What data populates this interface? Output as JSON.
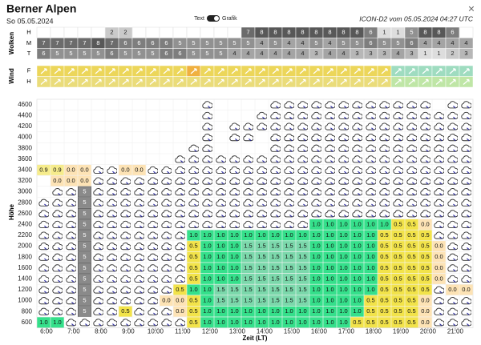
{
  "header": {
    "title": "Berner Alpen",
    "date": "So 05.05.2024",
    "toggle_left": "Text",
    "toggle_right": "Grafik",
    "model": "ICON-D2 vom 05.05.2024 04:27 UTC",
    "close": "×"
  },
  "clouds": {
    "label": "Wolken",
    "rows": [
      {
        "name": "H",
        "values": [
          null,
          null,
          null,
          null,
          null,
          2,
          2,
          null,
          null,
          null,
          null,
          null,
          null,
          null,
          null,
          7,
          8,
          8,
          8,
          8,
          8,
          8,
          8,
          8,
          6,
          1,
          1,
          5,
          8,
          8,
          6,
          null
        ]
      },
      {
        "name": "M",
        "values": [
          7,
          7,
          7,
          7,
          8,
          7,
          6,
          6,
          6,
          6,
          5,
          5,
          5,
          5,
          5,
          5,
          4,
          5,
          4,
          4,
          5,
          4,
          5,
          5,
          6,
          5,
          5,
          6,
          4,
          4,
          4,
          4
        ]
      },
      {
        "name": "T",
        "values": [
          6,
          5,
          5,
          5,
          5,
          6,
          5,
          5,
          5,
          6,
          6,
          5,
          5,
          5,
          4,
          4,
          4,
          4,
          4,
          4,
          3,
          4,
          4,
          3,
          3,
          3,
          4,
          3,
          1,
          1,
          2,
          3
        ]
      }
    ]
  },
  "wind": {
    "label": "Wind",
    "rows": [
      {
        "name": "F"
      },
      {
        "name": "H"
      }
    ]
  },
  "grid": {
    "y_label": "Höhe",
    "x_label": "Zeit (LT)",
    "times": [
      "6:00",
      "7:00",
      "8:00",
      "9:00",
      "10:00",
      "11:00",
      "12:00",
      "13:00",
      "14:00",
      "15:00",
      "16:00",
      "17:00",
      "18:00",
      "19:00",
      "20:00",
      "21:00"
    ],
    "cell_colors": {
      "0.0": "#fde3b5",
      "0.5": "#f2e34a",
      "0.9": "#f6ec8c",
      "1.0": "#35e08b",
      "1.5": "#7bd8ab",
      "5": "#8a8a8a"
    },
    "rows": [
      {
        "altitude": 4600,
        "cells": [
          null,
          null,
          null,
          null,
          null,
          null,
          null,
          null,
          null,
          null,
          null,
          null,
          true,
          null,
          null,
          null,
          null,
          true,
          true,
          true,
          true,
          true,
          true,
          true,
          true,
          true,
          true,
          true,
          true,
          null,
          true,
          true
        ]
      },
      {
        "altitude": 4400,
        "cells": [
          null,
          null,
          null,
          null,
          null,
          null,
          null,
          null,
          null,
          null,
          null,
          null,
          true,
          null,
          null,
          null,
          true,
          true,
          true,
          true,
          true,
          true,
          true,
          true,
          true,
          true,
          true,
          true,
          true,
          true,
          true,
          true
        ]
      },
      {
        "altitude": 4200,
        "cells": [
          null,
          null,
          null,
          null,
          null,
          null,
          null,
          null,
          null,
          null,
          null,
          null,
          true,
          null,
          true,
          true,
          true,
          true,
          true,
          true,
          true,
          true,
          true,
          true,
          true,
          true,
          true,
          true,
          true,
          true,
          true,
          true
        ]
      },
      {
        "altitude": 4000,
        "cells": [
          null,
          null,
          null,
          null,
          null,
          null,
          null,
          null,
          null,
          null,
          null,
          null,
          true,
          null,
          true,
          true,
          null,
          true,
          true,
          true,
          true,
          true,
          true,
          true,
          true,
          true,
          true,
          true,
          true,
          true,
          true,
          true
        ]
      },
      {
        "altitude": 3800,
        "cells": [
          null,
          null,
          null,
          null,
          null,
          null,
          null,
          null,
          null,
          null,
          null,
          true,
          true,
          null,
          null,
          null,
          null,
          true,
          true,
          true,
          true,
          true,
          true,
          true,
          true,
          true,
          true,
          true,
          true,
          true,
          true,
          true
        ]
      },
      {
        "altitude": 3600,
        "cells": [
          null,
          null,
          null,
          null,
          null,
          null,
          null,
          null,
          null,
          null,
          true,
          true,
          true,
          true,
          true,
          true,
          true,
          true,
          true,
          true,
          true,
          true,
          true,
          true,
          true,
          true,
          true,
          true,
          true,
          true,
          true,
          true
        ]
      },
      {
        "altitude": 3400,
        "cells": [
          "0.9",
          "0.9",
          "0.0",
          "0.0",
          true,
          true,
          "0.0",
          "0.0",
          true,
          true,
          true,
          true,
          true,
          true,
          true,
          true,
          true,
          true,
          true,
          true,
          true,
          true,
          true,
          true,
          true,
          true,
          true,
          true,
          true,
          true,
          true,
          true
        ]
      },
      {
        "altitude": 3200,
        "cells": [
          null,
          "0.0",
          "0.0",
          "0.0",
          true,
          true,
          true,
          true,
          true,
          true,
          true,
          true,
          true,
          true,
          true,
          true,
          true,
          true,
          true,
          true,
          true,
          true,
          true,
          true,
          true,
          true,
          true,
          true,
          true,
          true,
          true,
          true
        ]
      },
      {
        "altitude": 3000,
        "cells": [
          null,
          true,
          true,
          "5",
          true,
          true,
          true,
          true,
          true,
          true,
          true,
          true,
          true,
          true,
          true,
          true,
          true,
          true,
          true,
          true,
          true,
          true,
          true,
          true,
          true,
          true,
          true,
          true,
          true,
          true,
          true,
          true
        ]
      },
      {
        "altitude": 2800,
        "cells": [
          true,
          true,
          true,
          "5",
          true,
          true,
          true,
          true,
          true,
          true,
          true,
          true,
          true,
          true,
          true,
          true,
          true,
          true,
          true,
          true,
          true,
          true,
          true,
          true,
          true,
          true,
          true,
          true,
          true,
          true,
          true,
          true
        ]
      },
      {
        "altitude": 2600,
        "cells": [
          true,
          true,
          true,
          "5",
          true,
          true,
          true,
          true,
          true,
          true,
          true,
          true,
          true,
          true,
          true,
          true,
          true,
          true,
          true,
          true,
          true,
          true,
          true,
          true,
          true,
          true,
          true,
          true,
          true,
          true,
          true,
          true
        ]
      },
      {
        "altitude": 2400,
        "cells": [
          true,
          true,
          true,
          "5",
          true,
          true,
          true,
          true,
          true,
          true,
          true,
          true,
          true,
          true,
          true,
          true,
          true,
          true,
          true,
          true,
          "1.0",
          "1.0",
          "1.0",
          "1.0",
          "1.0",
          "1.0",
          "0.5",
          "0.5",
          "0.0",
          true,
          true,
          true
        ]
      },
      {
        "altitude": 2200,
        "cells": [
          true,
          true,
          true,
          "5",
          true,
          true,
          true,
          true,
          true,
          true,
          true,
          "1.0",
          "1.0",
          "1.0",
          "1.0",
          "1.0",
          "1.0",
          "1.0",
          "1.0",
          "1.0",
          "1.0",
          "1.0",
          "1.0",
          "1.0",
          "1.0",
          "0.5",
          "0.5",
          "0.5",
          "0.5",
          true,
          true,
          true
        ]
      },
      {
        "altitude": 2000,
        "cells": [
          true,
          true,
          true,
          "5",
          true,
          true,
          true,
          true,
          true,
          true,
          true,
          "0.5",
          "1.0",
          "1.0",
          "1.0",
          "1.5",
          "1.5",
          "1.5",
          "1.5",
          "1.5",
          "1.0",
          "1.0",
          "1.0",
          "1.0",
          "1.0",
          "0.5",
          "0.5",
          "0.5",
          "0.5",
          "0.0",
          true,
          true
        ]
      },
      {
        "altitude": 1800,
        "cells": [
          true,
          true,
          true,
          "5",
          true,
          true,
          true,
          true,
          true,
          true,
          true,
          "0.5",
          "1.0",
          "1.0",
          "1.0",
          "1.5",
          "1.5",
          "1.5",
          "1.5",
          "1.5",
          "1.0",
          "1.0",
          "1.0",
          "1.0",
          "1.0",
          "0.5",
          "0.5",
          "0.5",
          "0.5",
          "0.0",
          true,
          true
        ]
      },
      {
        "altitude": 1600,
        "cells": [
          true,
          true,
          true,
          "5",
          true,
          true,
          true,
          true,
          true,
          true,
          true,
          "0.5",
          "1.0",
          "1.0",
          "1.0",
          "1.5",
          "1.5",
          "1.5",
          "1.5",
          "1.5",
          "1.0",
          "1.0",
          "1.0",
          "1.0",
          "1.0",
          "0.5",
          "0.5",
          "0.5",
          "0.5",
          "0.0",
          true,
          true
        ]
      },
      {
        "altitude": 1400,
        "cells": [
          true,
          true,
          true,
          "5",
          true,
          true,
          true,
          true,
          true,
          true,
          true,
          "0.5",
          "1.0",
          "1.0",
          "1.0",
          "1.5",
          "1.5",
          "1.5",
          "1.5",
          "1.5",
          "1.0",
          "1.0",
          "1.0",
          "1.0",
          "1.0",
          "0.5",
          "0.5",
          "0.5",
          "0.5",
          "0.0",
          true,
          true
        ]
      },
      {
        "altitude": 1200,
        "cells": [
          true,
          true,
          true,
          "5",
          true,
          true,
          true,
          true,
          true,
          true,
          "0.5",
          "1.0",
          "1.0",
          "1.5",
          "1.5",
          "1.5",
          "1.5",
          "1.5",
          "1.5",
          "1.5",
          "1.0",
          "1.0",
          "1.0",
          "1.0",
          "1.0",
          "0.5",
          "0.5",
          "0.5",
          "0.5",
          true,
          "0.0",
          "0.0"
        ]
      },
      {
        "altitude": 1000,
        "cells": [
          true,
          true,
          true,
          "5",
          true,
          true,
          true,
          true,
          true,
          "0.0",
          "0.0",
          "0.5",
          "1.0",
          "1.5",
          "1.5",
          "1.5",
          "1.5",
          "1.5",
          "1.5",
          "1.5",
          "1.0",
          "1.0",
          "1.0",
          "1.0",
          "0.5",
          "0.5",
          "0.5",
          "0.5",
          "0.0",
          true,
          true,
          true
        ]
      },
      {
        "altitude": 800,
        "cells": [
          true,
          true,
          true,
          "5",
          true,
          true,
          "0.5",
          true,
          true,
          true,
          "0.0",
          "0.5",
          "1.0",
          "1.0",
          "1.0",
          "1.0",
          "1.0",
          "1.0",
          "1.0",
          "1.0",
          "1.0",
          "1.0",
          "1.0",
          "1.0",
          "0.5",
          "0.5",
          "0.5",
          "0.5",
          "0.0",
          true,
          true,
          true
        ]
      },
      {
        "altitude": 600,
        "cells": [
          "1.0",
          "1.0",
          true,
          true,
          true,
          true,
          true,
          true,
          true,
          true,
          true,
          "0.5",
          "1.0",
          "1.0",
          "1.0",
          "1.0",
          "1.0",
          "1.0",
          "1.0",
          "1.0",
          "1.0",
          "1.0",
          "1.0",
          "0.5",
          "0.5",
          "0.5",
          "0.5",
          "0.5",
          "0.0",
          true,
          true,
          true
        ]
      }
    ]
  }
}
